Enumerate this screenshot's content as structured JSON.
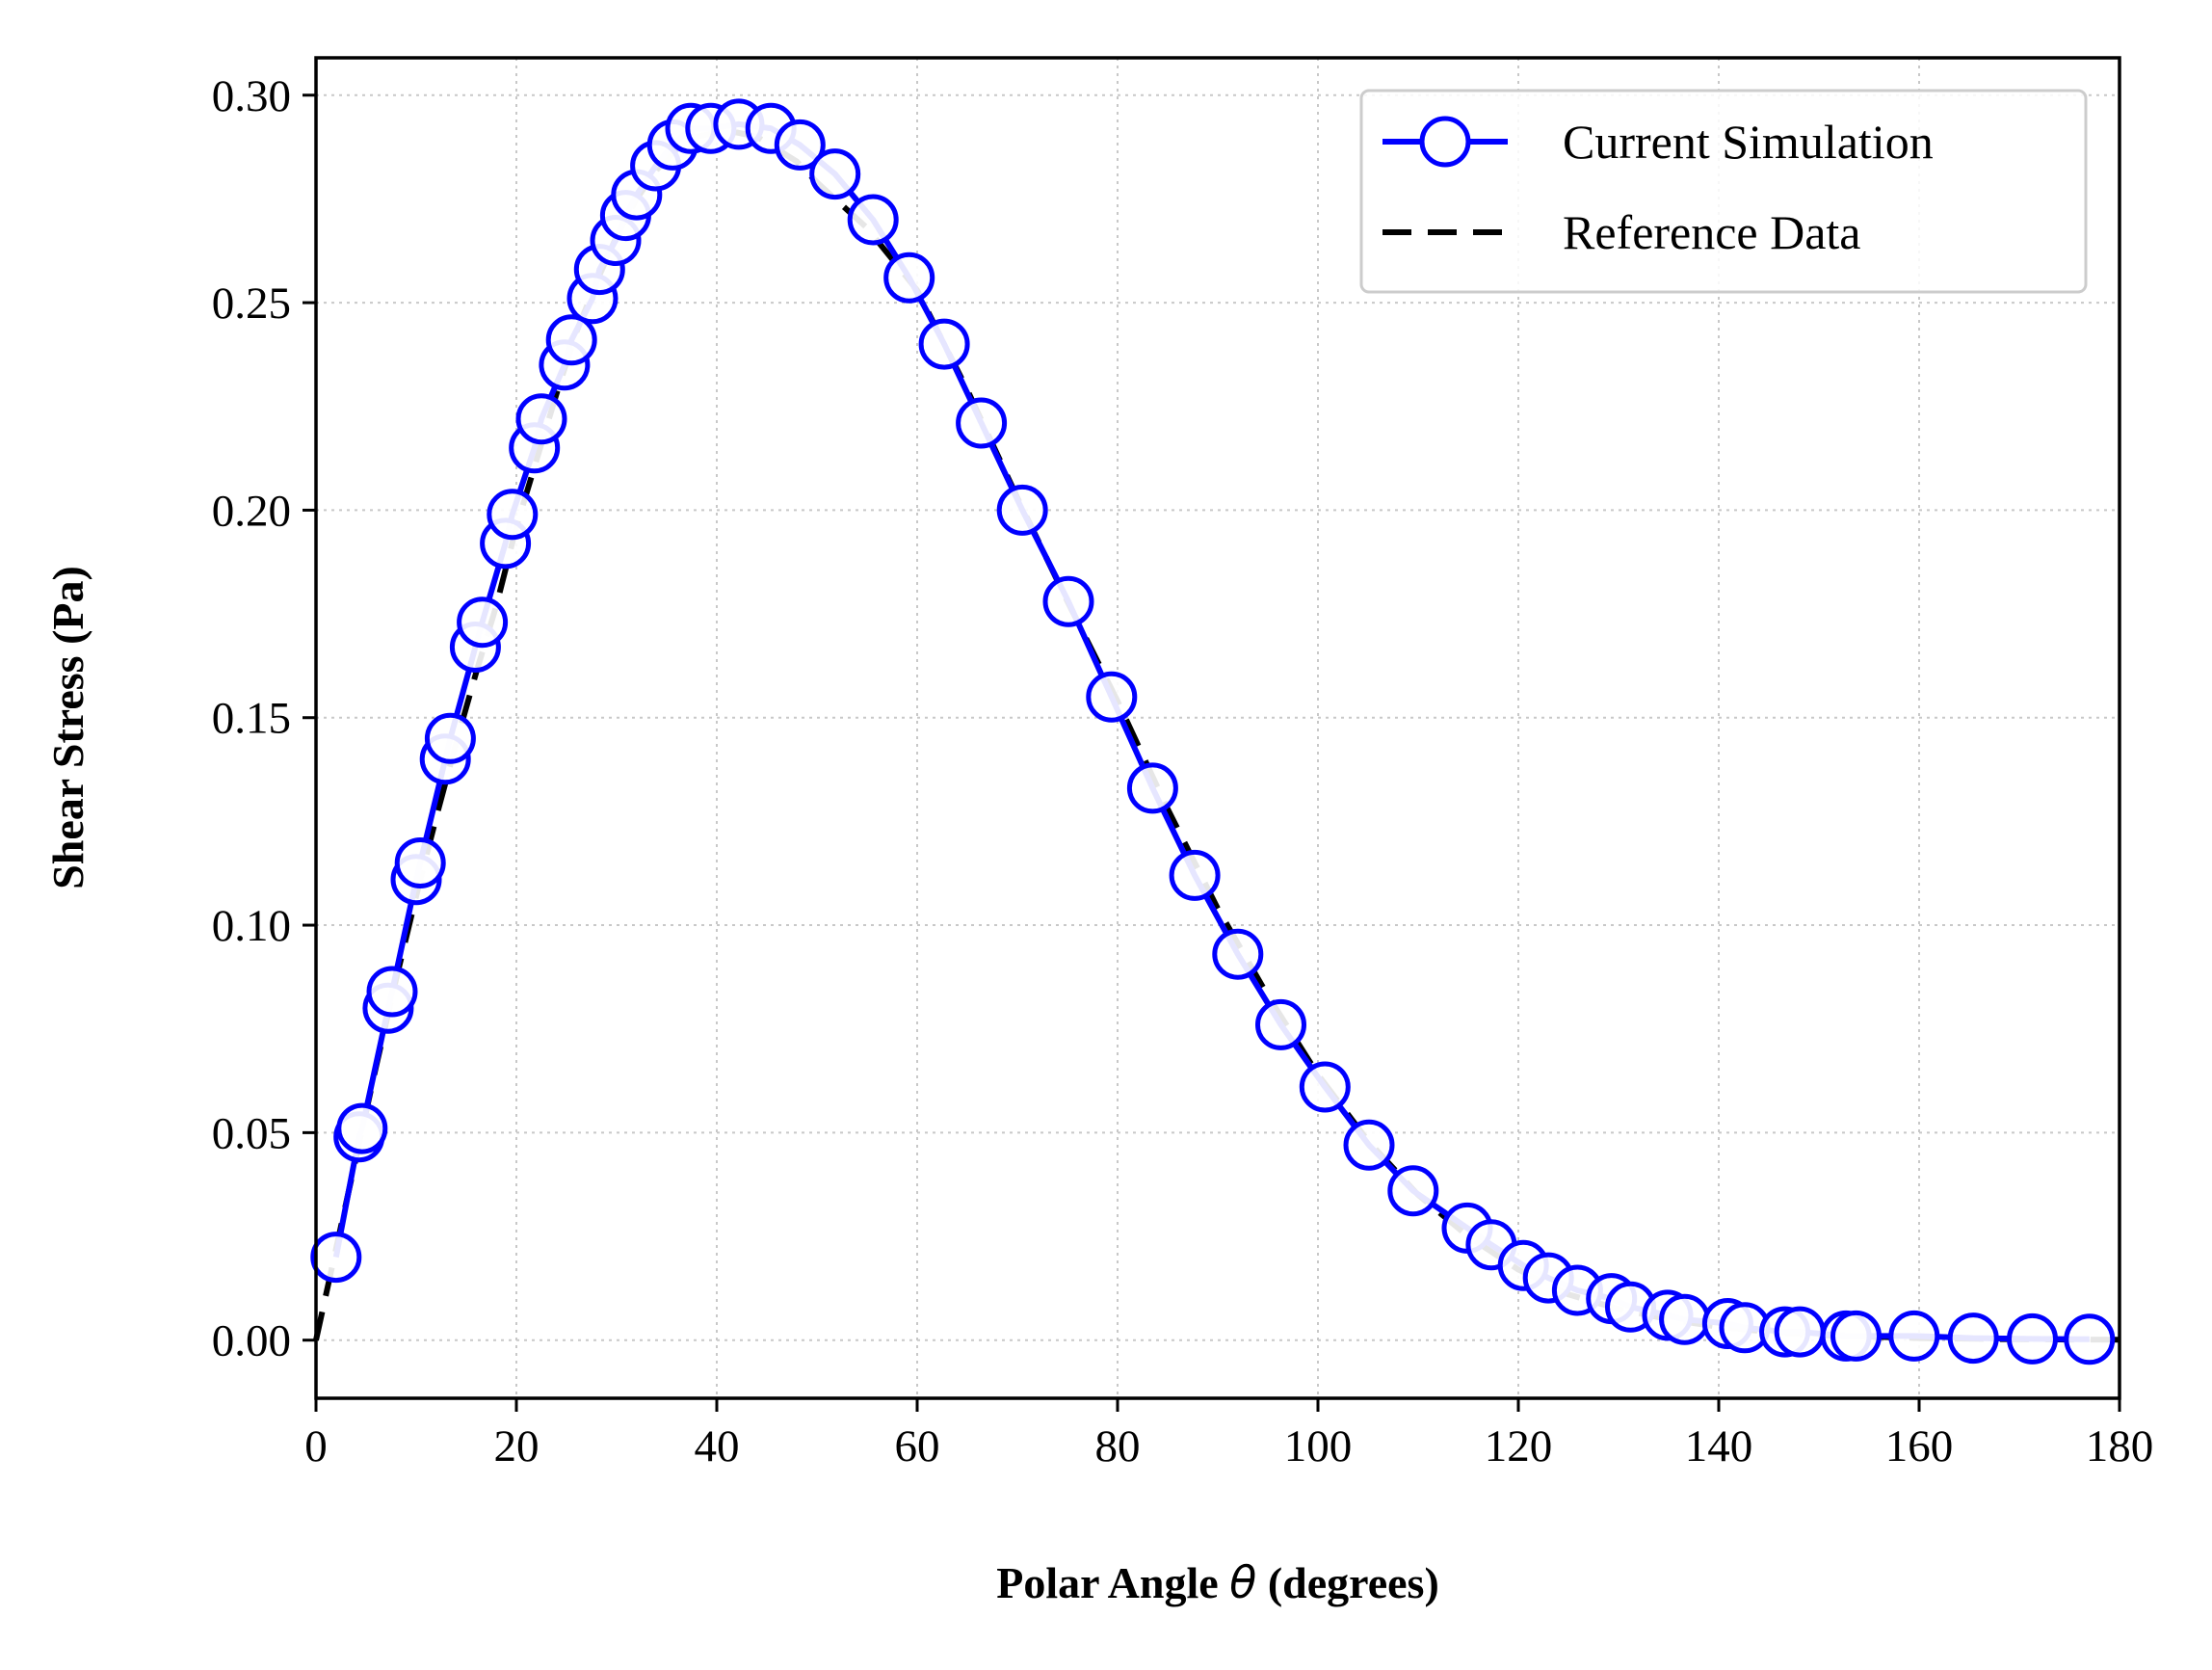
{
  "colors": {
    "simulation": "#0000ff",
    "reference": "#000000",
    "grid": "#c8c8c8",
    "legend_border": "#cccccc"
  },
  "chart_data": {
    "type": "line",
    "title": "",
    "xlabel_prefix": "Polar Angle ",
    "xlabel_symbol": "θ",
    "xlabel_suffix": " (degrees)",
    "ylabel": "Shear Stress (Pa)",
    "xlim": [
      0,
      180
    ],
    "ylim": [
      -0.014,
      0.309
    ],
    "grid": true,
    "legend_position": "top-right",
    "xticks": [
      0,
      20,
      40,
      60,
      80,
      100,
      120,
      140,
      160,
      180
    ],
    "xtick_labels": [
      "0",
      "20",
      "40",
      "60",
      "80",
      "100",
      "120",
      "140",
      "160",
      "180"
    ],
    "yticks": [
      0.0,
      0.05,
      0.1,
      0.15,
      0.2,
      0.25,
      0.3
    ],
    "ytick_labels": [
      "0.00",
      "0.05",
      "0.10",
      "0.15",
      "0.20",
      "0.25",
      "0.30"
    ],
    "series": [
      {
        "name": "Current Simulation",
        "style": "solid line with open circle markers",
        "color": "#0000ff",
        "x": [
          2.0,
          4.3,
          4.6,
          7.2,
          7.6,
          10.0,
          10.4,
          12.9,
          13.4,
          15.9,
          16.6,
          18.9,
          19.6,
          21.8,
          22.5,
          24.8,
          25.5,
          27.6,
          28.3,
          29.9,
          30.9,
          32.0,
          33.9,
          35.6,
          37.4,
          39.4,
          42.2,
          45.4,
          48.3,
          51.8,
          55.6,
          59.2,
          62.7,
          66.4,
          70.5,
          75.1,
          79.4,
          83.5,
          87.7,
          92.0,
          96.3,
          100.7,
          105.1,
          109.5,
          114.9,
          117.3,
          120.5,
          123.0,
          125.9,
          129.3,
          131.2,
          134.9,
          136.6,
          140.9,
          142.6,
          146.6,
          148.1,
          152.7,
          153.7,
          159.5,
          165.4,
          171.3,
          177.0
        ],
        "y": [
          0.02,
          0.049,
          0.051,
          0.08,
          0.084,
          0.111,
          0.115,
          0.14,
          0.145,
          0.167,
          0.173,
          0.192,
          0.199,
          0.215,
          0.222,
          0.235,
          0.241,
          0.251,
          0.258,
          0.265,
          0.271,
          0.276,
          0.283,
          0.288,
          0.292,
          0.292,
          0.293,
          0.292,
          0.288,
          0.281,
          0.27,
          0.256,
          0.24,
          0.221,
          0.2,
          0.178,
          0.155,
          0.133,
          0.112,
          0.093,
          0.076,
          0.061,
          0.047,
          0.036,
          0.027,
          0.023,
          0.018,
          0.015,
          0.012,
          0.01,
          0.008,
          0.006,
          0.005,
          0.004,
          0.003,
          0.002,
          0.002,
          0.001,
          0.001,
          0.001,
          0.0005,
          0.0003,
          0.0002
        ]
      },
      {
        "name": "Reference Data",
        "style": "dashed line",
        "color": "#000000",
        "x": [
          0,
          2,
          4,
          6,
          8,
          10,
          12,
          14,
          16,
          18,
          20,
          22,
          24,
          26,
          28,
          30,
          32,
          34,
          36,
          38,
          40,
          42,
          44,
          46,
          48,
          50,
          55,
          60,
          65,
          70,
          75,
          80,
          85,
          90,
          95,
          100,
          105,
          110,
          115,
          120,
          125,
          130,
          135,
          140,
          145,
          150,
          160,
          170,
          180
        ],
        "y": [
          0.0,
          0.022,
          0.044,
          0.066,
          0.087,
          0.107,
          0.126,
          0.144,
          0.161,
          0.177,
          0.196,
          0.212,
          0.228,
          0.243,
          0.255,
          0.266,
          0.275,
          0.282,
          0.287,
          0.29,
          0.291,
          0.291,
          0.29,
          0.287,
          0.284,
          0.279,
          0.268,
          0.253,
          0.229,
          0.203,
          0.178,
          0.154,
          0.128,
          0.104,
          0.083,
          0.064,
          0.048,
          0.035,
          0.025,
          0.017,
          0.011,
          0.0075,
          0.005,
          0.0032,
          0.002,
          0.0012,
          0.0005,
          0.0002,
          0.0001
        ]
      }
    ]
  }
}
